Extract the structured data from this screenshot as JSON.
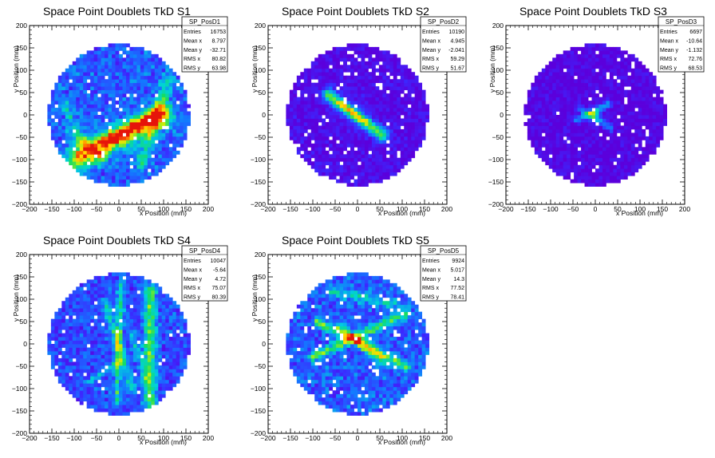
{
  "chart_data": [
    {
      "type": "heatmap",
      "title": "Space Point Doublets TkD S1",
      "xlabel": "x Position (mm)",
      "ylabel": "y Position (mm)",
      "xlim": [
        -200,
        200
      ],
      "ylim": [
        -200,
        200
      ],
      "x_ticks": [
        "−200",
        "−150",
        "−100",
        "−50",
        "0",
        "50",
        "100",
        "150",
        "200"
      ],
      "y_ticks": [
        "−200",
        "−150",
        "−100",
        "−50",
        "0",
        "50",
        "100",
        "150",
        "200"
      ],
      "stats": {
        "name": "SP_PosD1",
        "rows": [
          {
            "label": "Entries",
            "value": "16753"
          },
          {
            "label": "Mean x",
            "value": "8.797"
          },
          {
            "label": "Mean y",
            "value": "-32.71"
          },
          {
            "label": "RMS x",
            "value": "80.82"
          },
          {
            "label": "RMS y",
            "value": "63.98"
          }
        ]
      }
    },
    {
      "type": "heatmap",
      "title": "Space Point Doublets TkD S2",
      "xlabel": "x Position (mm)",
      "ylabel": "y Position (mm)",
      "xlim": [
        -200,
        200
      ],
      "ylim": [
        -200,
        200
      ],
      "x_ticks": [
        "−200",
        "−150",
        "−100",
        "−50",
        "0",
        "50",
        "100",
        "150",
        "200"
      ],
      "y_ticks": [
        "−200",
        "−150",
        "−100",
        "−50",
        "0",
        "50",
        "100",
        "150",
        "200"
      ],
      "stats": {
        "name": "SP_PosD2",
        "rows": [
          {
            "label": "Entries",
            "value": "10190"
          },
          {
            "label": "Mean x",
            "value": "4.945"
          },
          {
            "label": "Mean y",
            "value": "-2.041"
          },
          {
            "label": "RMS x",
            "value": "59.29"
          },
          {
            "label": "RMS y",
            "value": "51.67"
          }
        ]
      }
    },
    {
      "type": "heatmap",
      "title": "Space Point Doublets TkD S3",
      "xlabel": "x Position (mm)",
      "ylabel": "y Position (mm)",
      "xlim": [
        -200,
        200
      ],
      "ylim": [
        -200,
        200
      ],
      "x_ticks": [
        "−200",
        "−150",
        "−100",
        "−50",
        "0",
        "50",
        "100",
        "150",
        "200"
      ],
      "y_ticks": [
        "−200",
        "−150",
        "−100",
        "−50",
        "0",
        "50",
        "100",
        "150",
        "200"
      ],
      "stats": {
        "name": "SP_PosD3",
        "rows": [
          {
            "label": "Entries",
            "value": "6697"
          },
          {
            "label": "Mean x",
            "value": "-10.64"
          },
          {
            "label": "Mean y",
            "value": "-1.132"
          },
          {
            "label": "RMS x",
            "value": "72.76"
          },
          {
            "label": "RMS y",
            "value": "68.53"
          }
        ]
      }
    },
    {
      "type": "heatmap",
      "title": "Space Point Doublets TkD S4",
      "xlabel": "x Position (mm)",
      "ylabel": "y Position (mm)",
      "xlim": [
        -200,
        200
      ],
      "ylim": [
        -200,
        200
      ],
      "x_ticks": [
        "−200",
        "−150",
        "−100",
        "−50",
        "0",
        "50",
        "100",
        "150",
        "200"
      ],
      "y_ticks": [
        "−200",
        "−150",
        "−100",
        "−50",
        "0",
        "50",
        "100",
        "150",
        "200"
      ],
      "stats": {
        "name": "SP_PosD4",
        "rows": [
          {
            "label": "Entries",
            "value": "10047"
          },
          {
            "label": "Mean x",
            "value": "-5.64"
          },
          {
            "label": "Mean y",
            "value": "4.72"
          },
          {
            "label": "RMS x",
            "value": "75.07"
          },
          {
            "label": "RMS y",
            "value": "80.39"
          }
        ]
      }
    },
    {
      "type": "heatmap",
      "title": "Space Point Doublets TkD S5",
      "xlabel": "x Position (mm)",
      "ylabel": "y Position (mm)",
      "xlim": [
        -200,
        200
      ],
      "ylim": [
        -200,
        200
      ],
      "x_ticks": [
        "−200",
        "−150",
        "−100",
        "−50",
        "0",
        "50",
        "100",
        "150",
        "200"
      ],
      "y_ticks": [
        "−200",
        "−150",
        "−100",
        "−50",
        "0",
        "50",
        "100",
        "150",
        "200"
      ],
      "stats": {
        "name": "SP_PosD5",
        "rows": [
          {
            "label": "Entries",
            "value": "9924"
          },
          {
            "label": "Mean x",
            "value": "5.017"
          },
          {
            "label": "Mean y",
            "value": "14.3"
          },
          {
            "label": "RMS x",
            "value": "77.52"
          },
          {
            "label": "RMS y",
            "value": "78.41"
          }
        ]
      }
    }
  ]
}
